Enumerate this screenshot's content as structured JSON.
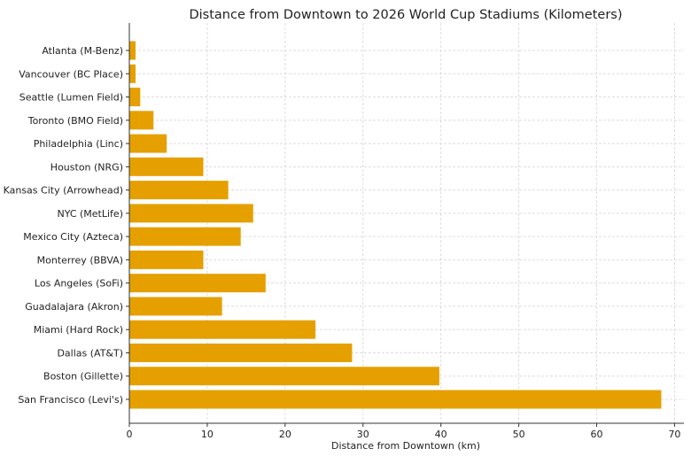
{
  "chart_data": {
    "type": "bar",
    "orientation": "horizontal",
    "title": "Distance from Downtown to 2026 World Cup Stadiums (Kilometers)",
    "xlabel": "Distance from Downtown (km)",
    "ylabel": "",
    "xlim": [
      0,
      71.2
    ],
    "xticks": [
      0,
      10,
      20,
      30,
      40,
      50,
      60,
      70
    ],
    "grid": true,
    "bar_color": "#E5A000",
    "categories": [
      "Atlanta (M-Benz)",
      "Vancouver (BC Place)",
      "Seattle (Lumen Field)",
      "Toronto (BMO Field)",
      "Philadelphia (Linc)",
      "Houston (NRG)",
      "Kansas City (Arrowhead)",
      "NYC (MetLife)",
      "Mexico City (Azteca)",
      "Monterrey (BBVA)",
      "Los Angeles (SoFi)",
      "Guadalajara (Akron)",
      "Miami (Hard Rock)",
      "Dallas (AT&T)",
      "Boston (Gillette)",
      "San Francisco (Levi's)"
    ],
    "values": [
      0.8,
      0.8,
      1.4,
      3.1,
      4.8,
      9.5,
      12.7,
      15.9,
      14.3,
      9.5,
      17.5,
      11.9,
      23.9,
      28.6,
      39.8,
      68.3
    ]
  }
}
